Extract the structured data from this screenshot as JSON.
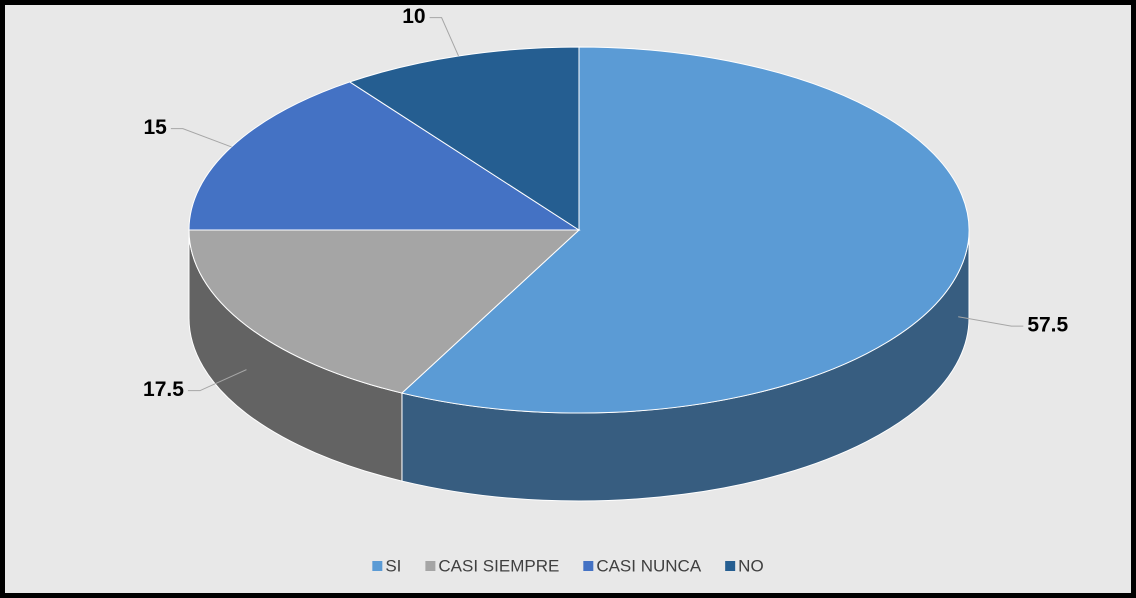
{
  "chart_data": {
    "type": "pie",
    "categories": [
      "SI",
      "CASI SIEMPRE",
      "CASI NUNCA",
      "NO"
    ],
    "values": [
      57.5,
      17.5,
      15,
      10
    ],
    "colors": [
      "#5b9bd5",
      "#a5a5a5",
      "#4472c4",
      "#255e91"
    ],
    "legend": "bottom"
  }
}
